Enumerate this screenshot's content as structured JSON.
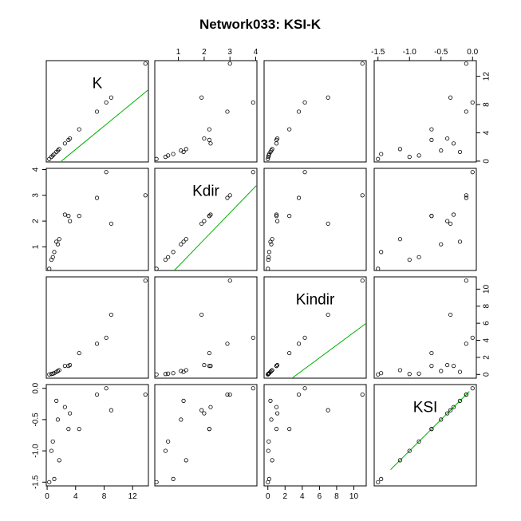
{
  "chart_data": {
    "type": "scatter-matrix",
    "title": "Network033: KSI-K",
    "variables": [
      "K",
      "Kdir",
      "Kindir",
      "KSI"
    ],
    "points": [
      {
        "K": 0.3,
        "Kdir": 0.15,
        "Kindir": 0.0,
        "KSI": -1.5
      },
      {
        "K": 0.6,
        "Kdir": 0.5,
        "Kindir": 0.05,
        "KSI": -1.0
      },
      {
        "K": 0.8,
        "Kdir": 0.6,
        "Kindir": 0.1,
        "KSI": -0.85
      },
      {
        "K": 1.0,
        "Kdir": 0.8,
        "Kindir": 0.15,
        "KSI": -1.45
      },
      {
        "K": 1.3,
        "Kdir": 1.2,
        "Kindir": 0.3,
        "KSI": -0.2
      },
      {
        "K": 1.5,
        "Kdir": 1.1,
        "Kindir": 0.4,
        "KSI": -0.5
      },
      {
        "K": 1.7,
        "Kdir": 1.3,
        "Kindir": 0.5,
        "KSI": -1.15
      },
      {
        "K": 2.5,
        "Kdir": 2.25,
        "Kindir": 1.0,
        "KSI": -0.3
      },
      {
        "K": 3.0,
        "Kdir": 2.2,
        "Kindir": 1.0,
        "KSI": -0.65
      },
      {
        "K": 3.2,
        "Kdir": 2.0,
        "Kindir": 1.1,
        "KSI": -0.4
      },
      {
        "K": 4.5,
        "Kdir": 2.2,
        "Kindir": 2.5,
        "KSI": -0.65
      },
      {
        "K": 7.0,
        "Kdir": 2.9,
        "Kindir": 3.6,
        "KSI": -0.1
      },
      {
        "K": 8.3,
        "Kdir": 3.9,
        "Kindir": 4.3,
        "KSI": 0.0
      },
      {
        "K": 9.0,
        "Kdir": 1.9,
        "Kindir": 7.0,
        "KSI": -0.35
      },
      {
        "K": 13.8,
        "Kdir": 3.0,
        "Kindir": 11.0,
        "KSI": -0.1
      }
    ],
    "ranges": {
      "K": [
        -0.12,
        14.22
      ],
      "Kdir": [
        0.084,
        4.046
      ],
      "Kindir": [
        -0.44,
        11.44
      ],
      "KSI": [
        -1.56,
        0.06
      ]
    },
    "ticks": {
      "K": [
        0,
        4,
        8,
        12
      ],
      "Kdir": [
        1,
        2,
        3,
        4
      ],
      "Kindir": [
        0,
        2,
        4,
        6,
        8,
        10
      ],
      "KSI": [
        -1.5,
        -1.0,
        -0.5,
        0.0
      ]
    },
    "tick_labels": {
      "K": [
        "0",
        "4",
        "8",
        "12"
      ],
      "Kdir": [
        "1",
        "2",
        "3",
        "4"
      ],
      "Kindir": [
        "0",
        "2",
        "4",
        "6",
        "8",
        "10"
      ],
      "KSI": [
        "-1.5",
        "-1.0",
        "-0.5",
        "0.0"
      ]
    },
    "diagonal_fit_lines": {
      "K": {
        "from": [
          2.0,
          0.0
        ],
        "to": [
          14.22,
          10.1
        ]
      },
      "Kdir": {
        "from": [
          0.84,
          0.084
        ],
        "to": [
          4.046,
          3.4
        ]
      },
      "Kindir": {
        "from": [
          2.8,
          -0.44
        ],
        "to": [
          11.44,
          6.0
        ]
      },
      "KSI": {
        "from": [
          -1.3,
          -1.3
        ],
        "to": [
          -0.05,
          -0.05
        ]
      }
    },
    "fit_line_color": "#00b000",
    "marker": "open-circle",
    "grid": false
  }
}
